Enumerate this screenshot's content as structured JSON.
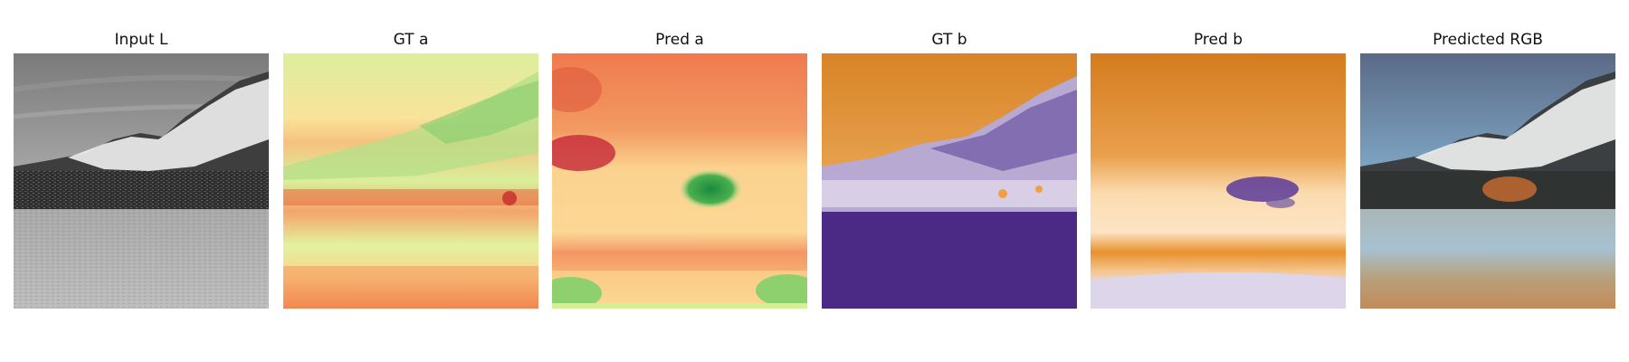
{
  "figure": {
    "panels": [
      {
        "id": "input-l",
        "title": "Input L"
      },
      {
        "id": "gt-a",
        "title": "GT a"
      },
      {
        "id": "pred-a",
        "title": "Pred a"
      },
      {
        "id": "gt-b",
        "title": "GT b"
      },
      {
        "id": "pred-b",
        "title": "Pred b"
      },
      {
        "id": "pred-rgb",
        "title": "Predicted RGB"
      }
    ]
  }
}
